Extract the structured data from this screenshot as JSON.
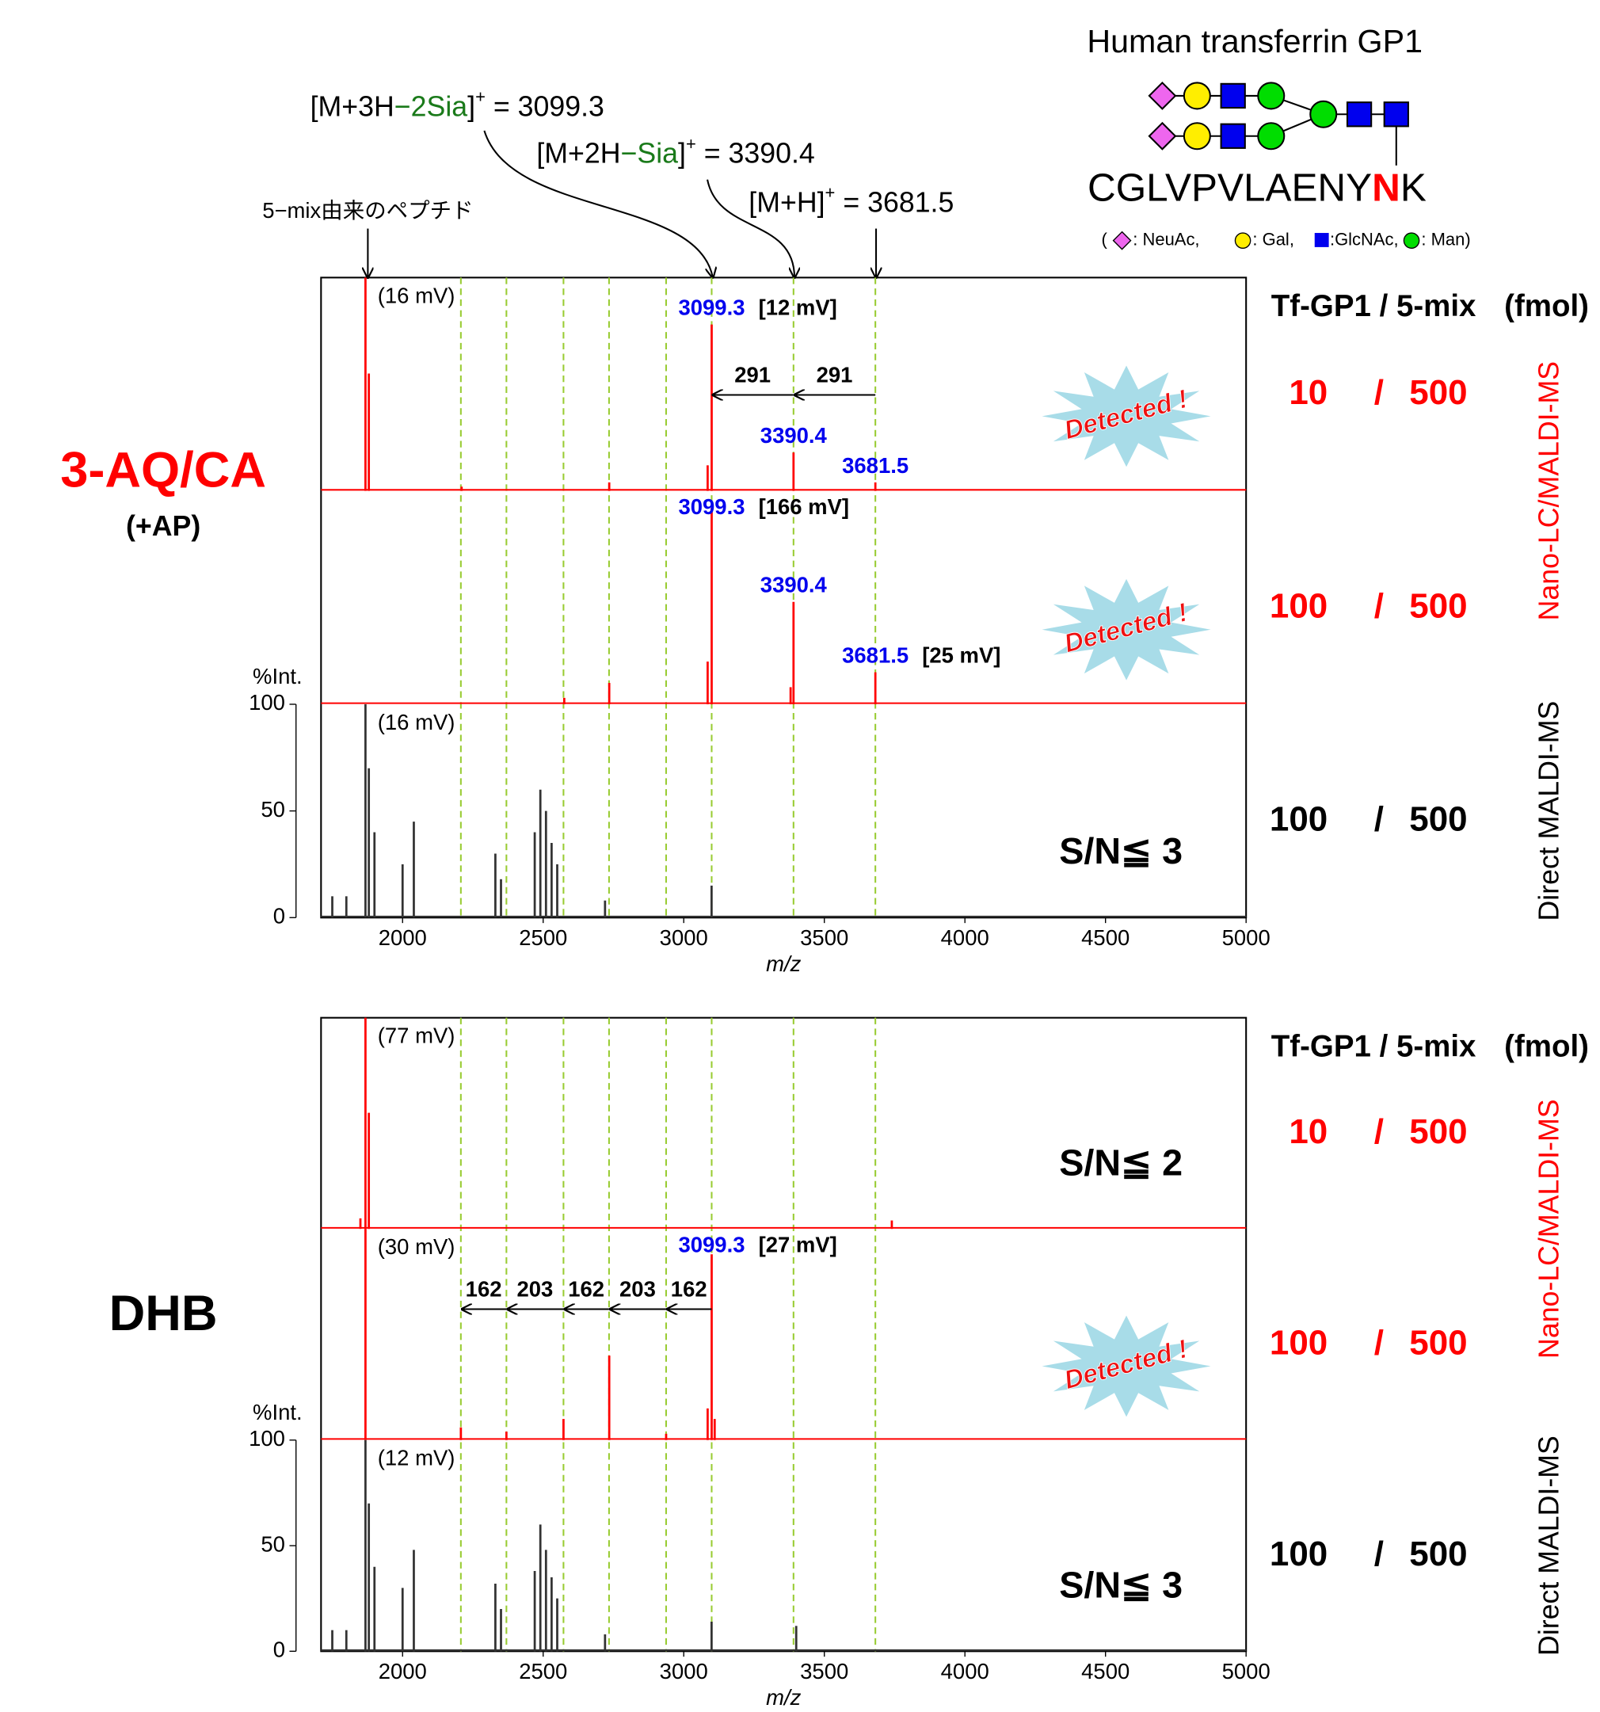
{
  "header": {
    "title": "Human transferrin GP1",
    "peptide": {
      "pre": "CGLVPVLAENY",
      "site": "N",
      "post": "K"
    },
    "legend": {
      "open": "(",
      "neuac": ": NeuAc,",
      "gal": ": Gal,",
      "glcnac": ":GlcNAc,",
      "man": ": Man)"
    }
  },
  "annotations": {
    "peptide_note": "5−mix由来のペプチド",
    "ions": [
      {
        "pre": "[M+3H",
        "loss": "−2Sia",
        "post": "]",
        "charge": "+",
        "mass": " = 3099.3"
      },
      {
        "pre": "[M+2H",
        "loss": "−Sia",
        "post": "]",
        "charge": "+",
        "mass": " = 3390.4"
      },
      {
        "pre": "[M+H]",
        "loss": "",
        "post": "",
        "charge": "+",
        "mass": " = 3681.5"
      }
    ]
  },
  "chart_data": [
    {
      "type": "spectrum",
      "title": "3-AQ/CA",
      "subtitle": "(+AP)",
      "xlabel": "m/z",
      "ylabel": "%Int.",
      "xlim": [
        1710,
        5000
      ],
      "xticks": [
        2000,
        2500,
        3000,
        3500,
        4000,
        4500,
        5000
      ],
      "ylim": [
        0,
        100
      ],
      "yticks": [
        0,
        50,
        100
      ],
      "guide_lines": [
        2207.3,
        2369.3,
        2572.3,
        2734.3,
        2937.3,
        3099.3,
        3390.4,
        3681.5
      ],
      "amount_header": "Tf-GP1 / 5-mix",
      "amount_unit": "(fmol)",
      "amount_separator": "/",
      "methods": [
        "Nano-LC/MALDI-MS",
        "Direct MALDI-MS"
      ],
      "panels": [
        {
          "color": "#ff0000",
          "intensity": "(16 mV)",
          "amount_tf": 10,
          "amount_mix": 500,
          "badge": "Detected !",
          "peaks": {
            "mz": [
              1868,
              1880,
              2210,
              2735,
              3085,
              3099.3,
              3390.4,
              3681.5
            ],
            "values": [
              100,
              55,
              2,
              4,
              12,
              78,
              18,
              4
            ]
          },
          "labels": [
            {
              "mz": 3099.3,
              "note": "[12 mV]"
            },
            {
              "mz": 3390.4
            },
            {
              "mz": 3681.5
            }
          ],
          "deltas": [
            {
              "from": 3681.5,
              "to": 3390.4,
              "value": 291
            },
            {
              "from": 3390.4,
              "to": 3099.3,
              "value": 291
            }
          ]
        },
        {
          "color": "#ff0000",
          "amount_tf": 100,
          "amount_mix": 500,
          "badge": "Detected !",
          "peaks": {
            "mz": [
              2575,
              2735,
              3085,
              3099.3,
              3380,
              3390.4,
              3681.5
            ],
            "values": [
              3,
              10,
              20,
              92,
              8,
              48,
              15
            ]
          },
          "labels": [
            {
              "mz": 3099.3,
              "note": "[166 mV]"
            },
            {
              "mz": 3390.4
            },
            {
              "mz": 3681.5,
              "note": "[25 mV]"
            }
          ]
        },
        {
          "color": "#333333",
          "intensity": "(16 mV)",
          "amount_tf": 100,
          "amount_mix": 500,
          "note": "S/N≦ 3",
          "peaks": {
            "mz": [
              1750,
              1800,
              1868,
              1880,
              1900,
              2000,
              2040,
              2330,
              2350,
              2470,
              2490,
              2510,
              2530,
              2550,
              2720,
              3099
            ],
            "values": [
              10,
              10,
              100,
              70,
              40,
              25,
              45,
              30,
              18,
              40,
              60,
              50,
              35,
              25,
              8,
              15
            ]
          }
        }
      ]
    },
    {
      "type": "spectrum",
      "title": "DHB",
      "xlabel": "m/z",
      "ylabel": "%Int.",
      "xlim": [
        1710,
        5000
      ],
      "xticks": [
        2000,
        2500,
        3000,
        3500,
        4000,
        4500,
        5000
      ],
      "ylim": [
        0,
        100
      ],
      "yticks": [
        0,
        50,
        100
      ],
      "guide_lines": [
        2207.3,
        2369.3,
        2572.3,
        2734.3,
        2937.3,
        3099.3,
        3390.4,
        3681.5
      ],
      "amount_header": "Tf-GP1 / 5-mix",
      "amount_unit": "(fmol)",
      "amount_separator": "/",
      "methods": [
        "Nano-LC/MALDI-MS",
        "Direct MALDI-MS"
      ],
      "panels": [
        {
          "color": "#ff0000",
          "intensity": "(77 mV)",
          "amount_tf": 10,
          "amount_mix": 500,
          "note": "S/N≦ 2",
          "peaks": {
            "mz": [
              1850,
              1868,
              1880,
              3740
            ],
            "values": [
              5,
              100,
              55,
              4
            ]
          }
        },
        {
          "color": "#ff0000",
          "intensity": "(30 mV)",
          "amount_tf": 100,
          "amount_mix": 500,
          "badge": "Detected !",
          "peaks": {
            "mz": [
              1868,
              2207.3,
              2369.3,
              2572.3,
              2735,
              2937.3,
              3085,
              3099.3,
              3110
            ],
            "values": [
              100,
              6,
              4,
              10,
              40,
              3,
              15,
              88,
              10
            ]
          },
          "labels": [
            {
              "mz": 3099.3,
              "note": "[27 mV]"
            }
          ],
          "deltas": [
            {
              "from": 3099.3,
              "to": 2937.3,
              "value": 162
            },
            {
              "from": 2937.3,
              "to": 2734.3,
              "value": 203
            },
            {
              "from": 2734.3,
              "to": 2572.3,
              "value": 162
            },
            {
              "from": 2572.3,
              "to": 2369.3,
              "value": 203
            },
            {
              "from": 2369.3,
              "to": 2207.3,
              "value": 162
            }
          ]
        },
        {
          "color": "#333333",
          "intensity": "(12 mV)",
          "amount_tf": 100,
          "amount_mix": 500,
          "note": "S/N≦ 3",
          "peaks": {
            "mz": [
              1750,
              1800,
              1868,
              1880,
              1900,
              2000,
              2040,
              2330,
              2350,
              2470,
              2490,
              2510,
              2530,
              2550,
              2720,
              3099,
              3400
            ],
            "values": [
              10,
              10,
              100,
              70,
              40,
              30,
              48,
              32,
              20,
              38,
              60,
              48,
              35,
              25,
              8,
              14,
              12
            ]
          }
        }
      ]
    }
  ]
}
